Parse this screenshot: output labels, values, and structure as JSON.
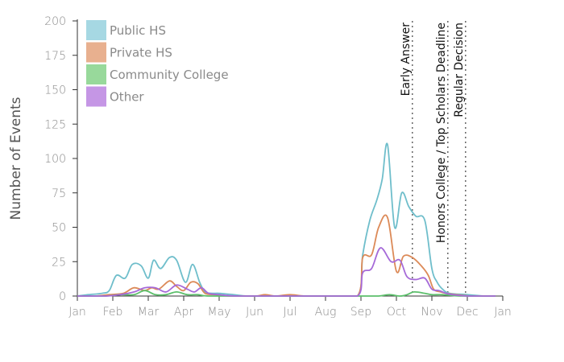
{
  "chart_data": {
    "type": "line",
    "ylabel": "Number of Events",
    "xlabel": "",
    "ylim": [
      0,
      200
    ],
    "y_ticks": [
      0,
      25,
      50,
      75,
      100,
      125,
      150,
      175,
      200
    ],
    "x_ticks": [
      {
        "month": 1,
        "label": "Jan"
      },
      {
        "month": 2,
        "label": "Feb"
      },
      {
        "month": 3,
        "label": "Mar"
      },
      {
        "month": 4,
        "label": "Apr"
      },
      {
        "month": 5,
        "label": "May"
      },
      {
        "month": 6,
        "label": "Jun"
      },
      {
        "month": 7,
        "label": "Jul"
      },
      {
        "month": 8,
        "label": "Aug"
      },
      {
        "month": 9,
        "label": "Sep"
      },
      {
        "month": 10,
        "label": "Oct"
      },
      {
        "month": 11,
        "label": "Nov"
      },
      {
        "month": 12,
        "label": "Dec"
      },
      {
        "month": 13,
        "label": "Jan"
      }
    ],
    "xlim_months": [
      1,
      13
    ],
    "legend_position": "top-left",
    "grid": false,
    "series": [
      {
        "name": "Public HS",
        "color": "#6fbecb",
        "legend_color": "#a6d8e3",
        "points": [
          [
            1.0,
            0
          ],
          [
            1.3,
            1
          ],
          [
            1.7,
            2
          ],
          [
            1.9,
            4
          ],
          [
            2.1,
            15
          ],
          [
            2.35,
            13
          ],
          [
            2.55,
            23
          ],
          [
            2.8,
            22
          ],
          [
            3.0,
            13
          ],
          [
            3.15,
            26
          ],
          [
            3.35,
            20
          ],
          [
            3.6,
            28
          ],
          [
            3.8,
            26
          ],
          [
            4.05,
            10
          ],
          [
            4.25,
            23
          ],
          [
            4.45,
            10
          ],
          [
            4.6,
            3
          ],
          [
            4.8,
            2
          ],
          [
            5.0,
            2
          ],
          [
            5.4,
            1
          ],
          [
            5.8,
            0
          ],
          [
            6.5,
            0
          ],
          [
            7.0,
            0
          ],
          [
            8.0,
            0
          ],
          [
            8.9,
            0
          ],
          [
            9.05,
            30
          ],
          [
            9.25,
            55
          ],
          [
            9.45,
            70
          ],
          [
            9.6,
            85
          ],
          [
            9.75,
            110
          ],
          [
            9.95,
            50
          ],
          [
            10.15,
            75
          ],
          [
            10.35,
            65
          ],
          [
            10.55,
            58
          ],
          [
            10.8,
            55
          ],
          [
            11.0,
            20
          ],
          [
            11.15,
            10
          ],
          [
            11.3,
            5
          ],
          [
            11.5,
            2
          ],
          [
            12.0,
            1
          ],
          [
            12.5,
            0
          ],
          [
            12.8,
            0
          ]
        ]
      },
      {
        "name": "Private HS",
        "color": "#dc8a58",
        "legend_color": "#e8b08f",
        "points": [
          [
            1.0,
            0
          ],
          [
            1.5,
            0
          ],
          [
            1.9,
            1
          ],
          [
            2.3,
            2
          ],
          [
            2.6,
            6
          ],
          [
            2.9,
            4
          ],
          [
            3.1,
            6
          ],
          [
            3.3,
            5
          ],
          [
            3.6,
            11
          ],
          [
            3.8,
            7
          ],
          [
            4.0,
            4
          ],
          [
            4.2,
            10
          ],
          [
            4.4,
            9
          ],
          [
            4.6,
            2
          ],
          [
            4.9,
            1
          ],
          [
            5.3,
            0
          ],
          [
            6.0,
            0
          ],
          [
            6.3,
            1
          ],
          [
            6.6,
            0
          ],
          [
            7.0,
            1
          ],
          [
            7.4,
            0
          ],
          [
            8.0,
            0
          ],
          [
            8.9,
            0
          ],
          [
            9.05,
            28
          ],
          [
            9.3,
            30
          ],
          [
            9.5,
            50
          ],
          [
            9.75,
            57
          ],
          [
            10.0,
            18
          ],
          [
            10.2,
            29
          ],
          [
            10.45,
            28
          ],
          [
            10.7,
            22
          ],
          [
            10.9,
            15
          ],
          [
            11.05,
            5
          ],
          [
            11.25,
            3
          ],
          [
            11.4,
            2
          ],
          [
            11.7,
            1
          ],
          [
            12.1,
            0
          ],
          [
            12.8,
            0
          ]
        ]
      },
      {
        "name": "Community College",
        "color": "#5cbf6b",
        "legend_color": "#98d99b",
        "points": [
          [
            1.0,
            0
          ],
          [
            1.8,
            0
          ],
          [
            2.2,
            1
          ],
          [
            2.6,
            1
          ],
          [
            2.9,
            4
          ],
          [
            3.2,
            1
          ],
          [
            3.5,
            1
          ],
          [
            3.8,
            3
          ],
          [
            4.1,
            1
          ],
          [
            4.4,
            1
          ],
          [
            4.7,
            0
          ],
          [
            5.5,
            0
          ],
          [
            7.0,
            0
          ],
          [
            8.0,
            0
          ],
          [
            9.0,
            0
          ],
          [
            9.5,
            0
          ],
          [
            9.8,
            1
          ],
          [
            10.1,
            0
          ],
          [
            10.3,
            1
          ],
          [
            10.5,
            3
          ],
          [
            10.8,
            2
          ],
          [
            11.0,
            1
          ],
          [
            11.3,
            1
          ],
          [
            11.8,
            0
          ],
          [
            12.8,
            0
          ]
        ]
      },
      {
        "name": "Other",
        "color": "#a56ad8",
        "legend_color": "#c596e5",
        "points": [
          [
            1.0,
            0
          ],
          [
            1.8,
            0
          ],
          [
            2.2,
            1
          ],
          [
            2.6,
            3
          ],
          [
            2.9,
            6
          ],
          [
            3.2,
            6
          ],
          [
            3.5,
            3
          ],
          [
            3.8,
            8
          ],
          [
            4.1,
            5
          ],
          [
            4.3,
            3
          ],
          [
            4.5,
            6
          ],
          [
            4.7,
            2
          ],
          [
            5.0,
            1
          ],
          [
            5.5,
            0
          ],
          [
            7.0,
            0
          ],
          [
            8.0,
            0
          ],
          [
            8.9,
            0
          ],
          [
            9.05,
            17
          ],
          [
            9.3,
            20
          ],
          [
            9.55,
            35
          ],
          [
            9.85,
            25
          ],
          [
            10.1,
            26
          ],
          [
            10.3,
            14
          ],
          [
            10.55,
            12
          ],
          [
            10.8,
            13
          ],
          [
            11.0,
            5
          ],
          [
            11.2,
            4
          ],
          [
            11.4,
            2
          ],
          [
            11.6,
            1
          ],
          [
            12.0,
            0
          ],
          [
            12.8,
            0
          ]
        ]
      }
    ],
    "annotations": [
      {
        "label": "Early Answer",
        "month": 10.45
      },
      {
        "label": "Honors College / Top Scholars Deadline",
        "month": 11.45
      },
      {
        "label": "Regular Decision",
        "month": 11.95
      }
    ]
  }
}
